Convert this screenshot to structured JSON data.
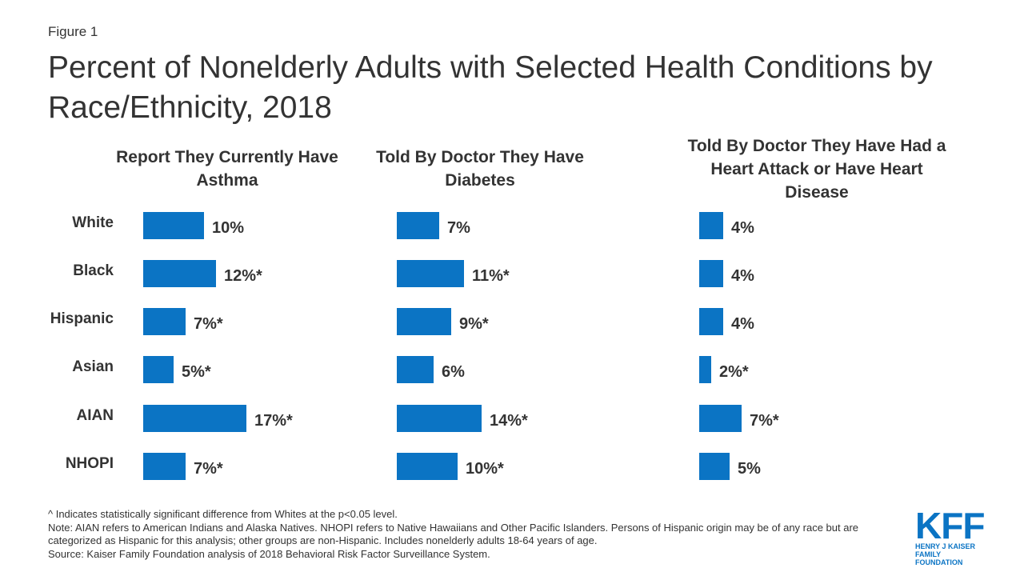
{
  "figure_label": "Figure 1",
  "title": "Percent of Nonelderly Adults with Selected Health Conditions by Race/Ethnicity, 2018",
  "chart_data": {
    "type": "bar",
    "orientation": "horizontal",
    "categories": [
      "White",
      "Black",
      "Hispanic",
      "Asian",
      "AIAN",
      "NHOPI"
    ],
    "panels": [
      {
        "title": "Report They Currently Have Asthma",
        "values": [
          10,
          12,
          7,
          5,
          17,
          7
        ],
        "labels": [
          "10%",
          "12%*",
          "7%*",
          "5%*",
          "17%*",
          "7%*"
        ]
      },
      {
        "title": "Told By Doctor They Have Diabetes",
        "values": [
          7,
          11,
          9,
          6,
          14,
          10
        ],
        "labels": [
          "7%",
          "11%*",
          "9%*",
          "6%",
          "14%*",
          "10%*"
        ]
      },
      {
        "title": "Told By Doctor They Have Had a Heart Attack or Have Heart Disease",
        "values": [
          4,
          4,
          4,
          2,
          7,
          5
        ],
        "labels": [
          "4%",
          "4%",
          "4%",
          "2%*",
          "7%*",
          "5%"
        ]
      }
    ],
    "bar_color": "#0b74c4"
  },
  "notes": {
    "significance": "^ Indicates statistically significant difference from Whites at the p<0.05 level.",
    "note": "Note: AIAN refers to American Indians and Alaska Natives. NHOPI refers to Native Hawaiians and Other Pacific Islanders. Persons of Hispanic origin may be of any race but are categorized as Hispanic for this analysis; other groups are non-Hispanic. Includes nonelderly adults 18-64 years of age.",
    "source": "Source: Kaiser Family Foundation analysis of 2018 Behavioral Risk Factor Surveillance System."
  },
  "logo": {
    "mark": "KFF",
    "line1": "HENRY J KAISER",
    "line2": "FAMILY FOUNDATION"
  }
}
